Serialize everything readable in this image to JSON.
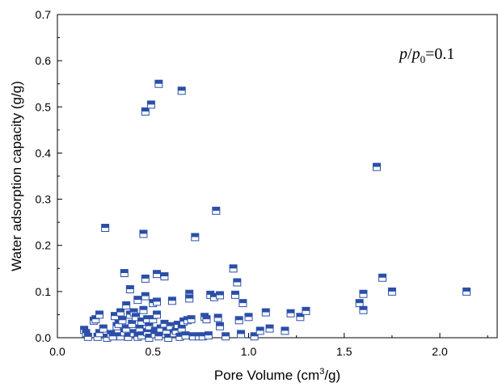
{
  "chart_data": {
    "type": "scatter",
    "xlabel": "Pore Volume (cm",
    "xlabel_sup": "3",
    "xlabel_end": "/g)",
    "ylabel": "Water adsorption capacity (g/g)",
    "xlim": [
      0.0,
      2.3
    ],
    "ylim": [
      0.0,
      0.7
    ],
    "x_ticks": [
      "0.0",
      "0.5",
      "1.0",
      "1.5",
      "2.0"
    ],
    "y_ticks": [
      "0.0",
      "0.1",
      "0.2",
      "0.3",
      "0.4",
      "0.5",
      "0.6",
      "0.7"
    ],
    "annotation": {
      "p": "p",
      "slash": "/",
      "p0": "p",
      "sub": "0",
      "eq": "=0.1"
    },
    "marker": "half-filled square",
    "marker_color": "#2b4fa8",
    "grid": false,
    "legend": "none",
    "series": [
      {
        "points": [
          [
            0.14,
            0.017
          ],
          [
            0.15,
            0.01
          ],
          [
            0.16,
            0.002
          ],
          [
            0.19,
            0.037
          ],
          [
            0.2,
            0.04
          ],
          [
            0.21,
            0.002
          ],
          [
            0.22,
            0.01
          ],
          [
            0.22,
            0.05
          ],
          [
            0.24,
            0.02
          ],
          [
            0.25,
            0.238
          ],
          [
            0.26,
            0.0
          ],
          [
            0.28,
            0.008
          ],
          [
            0.29,
            0.003
          ],
          [
            0.3,
            0.047
          ],
          [
            0.31,
            0.025
          ],
          [
            0.32,
            0.03
          ],
          [
            0.33,
            0.055
          ],
          [
            0.33,
            0.003
          ],
          [
            0.34,
            0.038
          ],
          [
            0.35,
            0.14
          ],
          [
            0.35,
            0.012
          ],
          [
            0.36,
            0.07
          ],
          [
            0.36,
            0.02
          ],
          [
            0.37,
            0.002
          ],
          [
            0.38,
            0.05
          ],
          [
            0.38,
            0.105
          ],
          [
            0.39,
            0.03
          ],
          [
            0.4,
            0.055
          ],
          [
            0.4,
            0.01
          ],
          [
            0.41,
            0.045
          ],
          [
            0.42,
            0.002
          ],
          [
            0.42,
            0.082
          ],
          [
            0.43,
            0.02
          ],
          [
            0.44,
            0.005
          ],
          [
            0.44,
            0.035
          ],
          [
            0.45,
            0.225
          ],
          [
            0.45,
            0.06
          ],
          [
            0.46,
            0.49
          ],
          [
            0.46,
            0.128
          ],
          [
            0.46,
            0.09
          ],
          [
            0.47,
            0.04
          ],
          [
            0.47,
            0.012
          ],
          [
            0.48,
            0.025
          ],
          [
            0.48,
            0.0
          ],
          [
            0.49,
            0.505
          ],
          [
            0.5,
            0.075
          ],
          [
            0.5,
            0.04
          ],
          [
            0.51,
            0.015
          ],
          [
            0.51,
            0.008
          ],
          [
            0.52,
            0.138
          ],
          [
            0.52,
            0.078
          ],
          [
            0.52,
            0.05
          ],
          [
            0.53,
            0.55
          ],
          [
            0.53,
            0.003
          ],
          [
            0.54,
            0.02
          ],
          [
            0.56,
            0.03
          ],
          [
            0.56,
            0.133
          ],
          [
            0.57,
            0.015
          ],
          [
            0.58,
            0.0
          ],
          [
            0.59,
            0.025
          ],
          [
            0.6,
            0.08
          ],
          [
            0.61,
            0.01
          ],
          [
            0.62,
            0.015
          ],
          [
            0.63,
            0.028
          ],
          [
            0.64,
            0.002
          ],
          [
            0.65,
            0.535
          ],
          [
            0.65,
            0.02
          ],
          [
            0.66,
            0.035
          ],
          [
            0.67,
            0.005
          ],
          [
            0.68,
            0.038
          ],
          [
            0.69,
            0.095
          ],
          [
            0.69,
            0.085
          ],
          [
            0.7,
            0.04
          ],
          [
            0.71,
            0.003
          ],
          [
            0.72,
            0.218
          ],
          [
            0.74,
            0.003
          ],
          [
            0.76,
            0.003
          ],
          [
            0.77,
            0.045
          ],
          [
            0.78,
            0.04
          ],
          [
            0.79,
            0.005
          ],
          [
            0.8,
            0.093
          ],
          [
            0.82,
            0.088
          ],
          [
            0.83,
            0.275
          ],
          [
            0.84,
            0.043
          ],
          [
            0.85,
            0.092
          ],
          [
            0.85,
            0.025
          ],
          [
            0.88,
            0.003
          ],
          [
            0.92,
            0.15
          ],
          [
            0.93,
            0.093
          ],
          [
            0.94,
            0.12
          ],
          [
            0.95,
            0.038
          ],
          [
            0.96,
            0.008
          ],
          [
            0.97,
            0.075
          ],
          [
            1.0,
            0.045
          ],
          [
            1.03,
            0.003
          ],
          [
            1.06,
            0.015
          ],
          [
            1.09,
            0.055
          ],
          [
            1.11,
            0.02
          ],
          [
            1.19,
            0.015
          ],
          [
            1.22,
            0.053
          ],
          [
            1.27,
            0.045
          ],
          [
            1.3,
            0.058
          ],
          [
            1.58,
            0.075
          ],
          [
            1.6,
            0.06
          ],
          [
            1.6,
            0.095
          ],
          [
            1.67,
            0.37
          ],
          [
            1.7,
            0.13
          ],
          [
            1.75,
            0.1
          ],
          [
            2.14,
            0.1
          ]
        ]
      }
    ]
  }
}
